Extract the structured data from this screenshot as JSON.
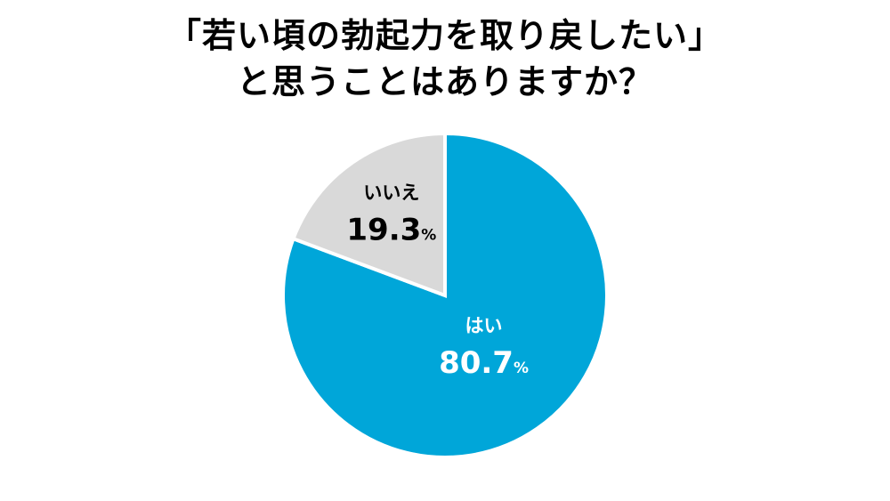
{
  "title": {
    "line1": "「若い頃の勃起力を取り戻したい」",
    "line2": "と思うことはありますか？"
  },
  "chart_data": {
    "type": "pie",
    "title": "「若い頃の勃起力を取り戻したい」と思うことはありますか？",
    "slices": [
      {
        "label": "はい",
        "value": 80.7,
        "value_text": "80.7",
        "unit": "%",
        "color": "#00a6d9",
        "text_color": "#ffffff"
      },
      {
        "label": "いいえ",
        "value": 19.3,
        "value_text": "19.3",
        "unit": "%",
        "color": "#d9d9d9",
        "text_color": "#000000"
      }
    ],
    "start": "12 o'clock",
    "direction": "clockwise"
  }
}
